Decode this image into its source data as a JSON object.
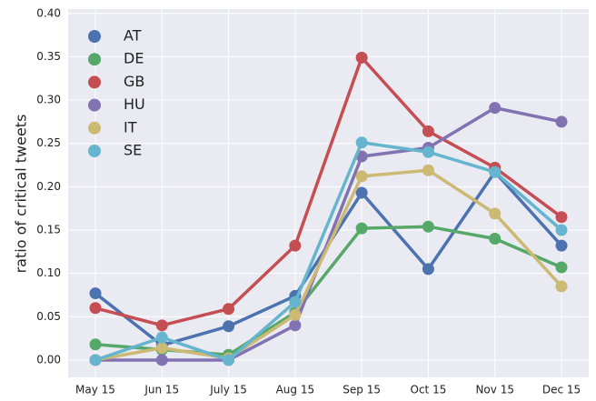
{
  "chart_data": {
    "type": "line",
    "ylabel": "ratio of critical tweets",
    "categories": [
      "May 15",
      "Jun 15",
      "July 15",
      "Aug 15",
      "Sep 15",
      "Oct 15",
      "Nov 15",
      "Dec 15"
    ],
    "series": [
      {
        "name": "AT",
        "color": "#4c72b0",
        "values": [
          0.077,
          0.017,
          0.039,
          0.074,
          0.193,
          0.105,
          0.217,
          0.132
        ]
      },
      {
        "name": "DE",
        "color": "#55a868",
        "values": [
          0.018,
          0.012,
          0.006,
          0.055,
          0.152,
          0.154,
          0.14,
          0.107
        ]
      },
      {
        "name": "GB",
        "color": "#c44e52",
        "values": [
          0.06,
          0.04,
          0.059,
          0.132,
          0.349,
          0.264,
          0.222,
          0.165
        ]
      },
      {
        "name": "HU",
        "color": "#8172b2",
        "values": [
          0,
          0,
          0,
          0.04,
          0.235,
          0.245,
          0.291,
          0.275
        ]
      },
      {
        "name": "IT",
        "color": "#ccb974",
        "values": [
          0,
          0.014,
          0.002,
          0.052,
          0.212,
          0.219,
          0.169,
          0.085
        ]
      },
      {
        "name": "SE",
        "color": "#64b5cd",
        "values": [
          0,
          0.026,
          0,
          0.067,
          0.251,
          0.24,
          0.217,
          0.15
        ]
      }
    ],
    "ylim": [
      -0.02,
      0.405
    ],
    "yticks": [
      {
        "value": 0,
        "label": "0.00"
      },
      {
        "value": 0.05,
        "label": "0.05"
      },
      {
        "value": 0.1,
        "label": "0.10"
      },
      {
        "value": 0.15,
        "label": "0.15"
      },
      {
        "value": 0.2,
        "label": "0.20"
      },
      {
        "value": 0.25,
        "label": "0.25"
      },
      {
        "value": 0.3,
        "label": "0.30"
      },
      {
        "value": 0.35,
        "label": "0.35"
      },
      {
        "value": 0.4,
        "label": "0.40"
      }
    ],
    "grid": true,
    "legend": "upper left",
    "background": "#eaeaf2"
  }
}
